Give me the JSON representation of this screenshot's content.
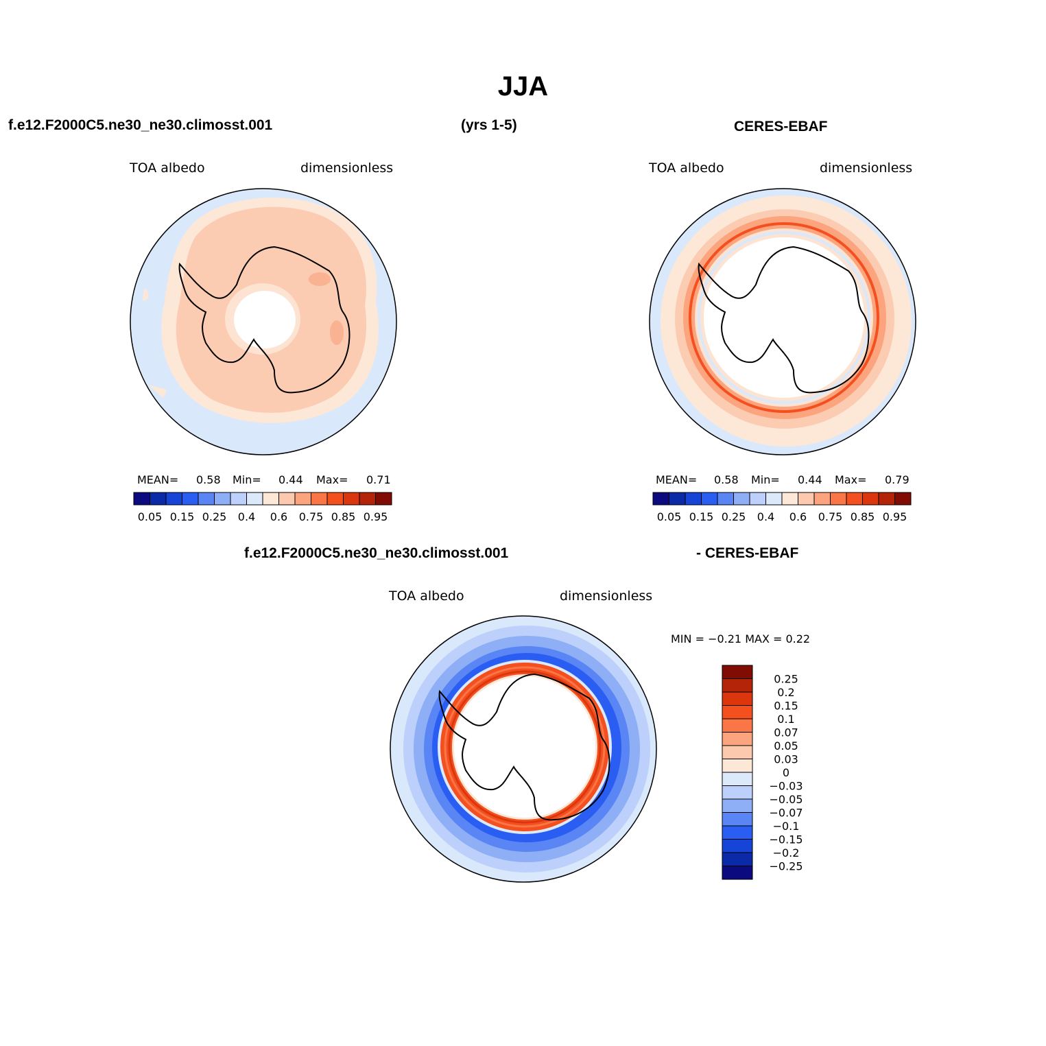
{
  "title": "JJA",
  "top_left_case": "f.e12.F2000C5.ne30_ne30.climosst.001",
  "years": "(yrs 1-5)",
  "top_right_case": "CERES-EBAF",
  "bottom_case_left": "f.e12.F2000C5.ne30_ne30.climosst.001",
  "bottom_case_right": "- CERES-EBAF",
  "panels": [
    {
      "variable": "TOA albedo",
      "units": "dimensionless",
      "mean_label": "MEAN=",
      "mean": "0.58",
      "min_label": "Min=",
      "min": "0.44",
      "max_label": "Max=",
      "max": "0.71"
    },
    {
      "variable": "TOA albedo",
      "units": "dimensionless",
      "mean_label": "MEAN=",
      "mean": "0.58",
      "min_label": "Min=",
      "min": "0.44",
      "max_label": "Max=",
      "max": "0.79"
    },
    {
      "variable": "TOA albedo",
      "units": "dimensionless",
      "minmax_label": "MIN =   −0.21  MAX =    0.22"
    }
  ],
  "colorbar_seq": {
    "colors": [
      "#0b0b7f",
      "#0a2aa8",
      "#1544d6",
      "#2a5ef2",
      "#5a86f5",
      "#8eaef6",
      "#bcd0fb",
      "#dce9fb",
      "#fde7d6",
      "#fcc9ae",
      "#fba47e",
      "#fb7646",
      "#f4501f",
      "#dc360f",
      "#b32408",
      "#800c04"
    ],
    "labels": [
      "0.05",
      "0.15",
      "0.25",
      "0.4",
      "0.6",
      "0.75",
      "0.85",
      "0.95"
    ]
  },
  "colorbar_diff": {
    "colors": [
      "#800c04",
      "#b32408",
      "#dc360f",
      "#f4501f",
      "#fb7646",
      "#fba47e",
      "#fcc9ae",
      "#fde7d6",
      "#dce9fb",
      "#bcd0fb",
      "#8eaef6",
      "#5a86f5",
      "#2a5ef2",
      "#1544d6",
      "#0a2aa8",
      "#0b0b7f"
    ],
    "labels": [
      "0.25",
      "0.2",
      "0.15",
      "0.1",
      "0.07",
      "0.05",
      "0.03",
      "0",
      "−0.03",
      "−0.05",
      "−0.07",
      "−0.1",
      "−0.15",
      "−0.2",
      "−0.25"
    ]
  }
}
